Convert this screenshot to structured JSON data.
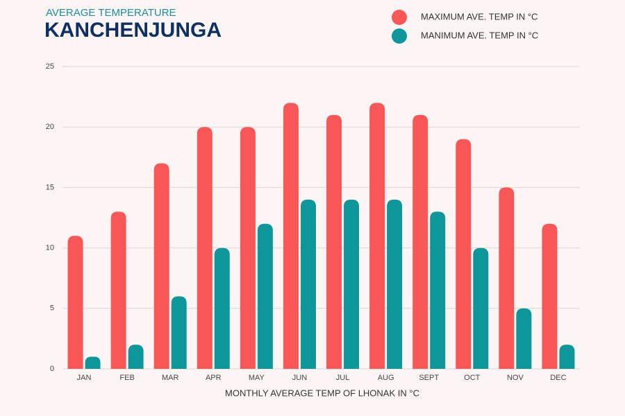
{
  "chart_data": {
    "type": "bar",
    "subtitle": "AVERAGE TEMPERATURE",
    "title": "KANCHENJUNGA",
    "x_label": "MONTHLY AVERAGE TEMP OF LHONAK IN °C",
    "categories": [
      "JAN",
      "FEB",
      "MAR",
      "APR",
      "MAY",
      "JUN",
      "JUL",
      "AUG",
      "SEPT",
      "OCT",
      "NOV",
      "DEC"
    ],
    "series": [
      {
        "name": "MAXIMUM AVE.  TEMP IN °C",
        "color": "#f95757",
        "values": [
          11,
          13,
          17,
          20,
          20,
          22,
          21,
          22,
          21,
          19,
          15,
          12
        ]
      },
      {
        "name": "MANIMUM AVE.  TEMP IN °C",
        "color": "#0e979a",
        "values": [
          1,
          2,
          6,
          10,
          12,
          14,
          14,
          14,
          13,
          10,
          5,
          2
        ]
      }
    ],
    "ylim": [
      0,
      25
    ],
    "yticks": [
      0,
      5,
      10,
      15,
      20,
      25
    ],
    "grid": true,
    "legend": "top-right"
  }
}
